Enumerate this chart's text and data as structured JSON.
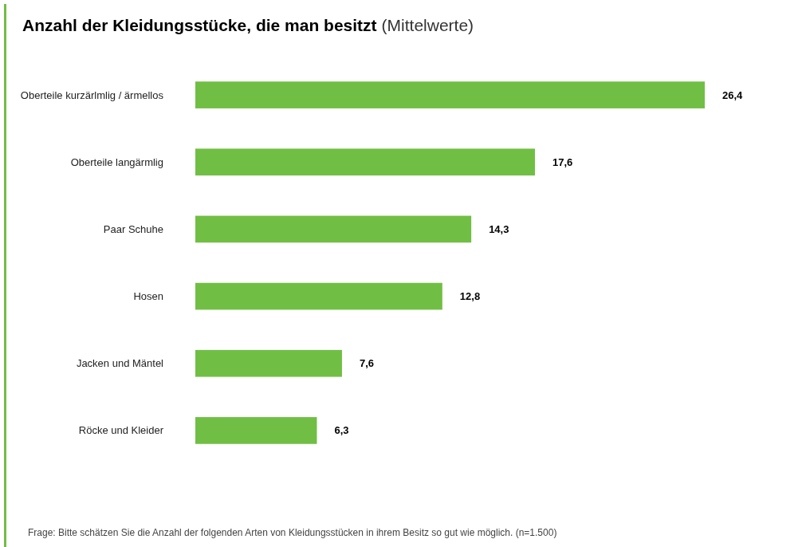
{
  "chart_data": {
    "type": "bar",
    "orientation": "horizontal",
    "title": "Anzahl der Kleidungsstücke, die man besitzt",
    "subtitle": "(Mittelwerte)",
    "categories": [
      "Oberteile kurzärlmlig / ärmellos",
      "Oberteile langärmlig",
      "Paar Schuhe",
      "Hosen",
      "Jacken und Mäntel",
      "Röcke und Kleider"
    ],
    "values": [
      26.4,
      17.6,
      14.3,
      12.8,
      7.6,
      6.3
    ],
    "value_labels": [
      "26,4",
      "17,6",
      "14,3",
      "12,8",
      "7,6",
      "6,3"
    ],
    "color": "#70bf44",
    "annotations": [
      "Frage: Bitte schätzen Sie die Anzahl der folgenden Arten von Kleidungsstücken in ihrem Besitz so gut wie möglich. (n=1.500)"
    ]
  }
}
